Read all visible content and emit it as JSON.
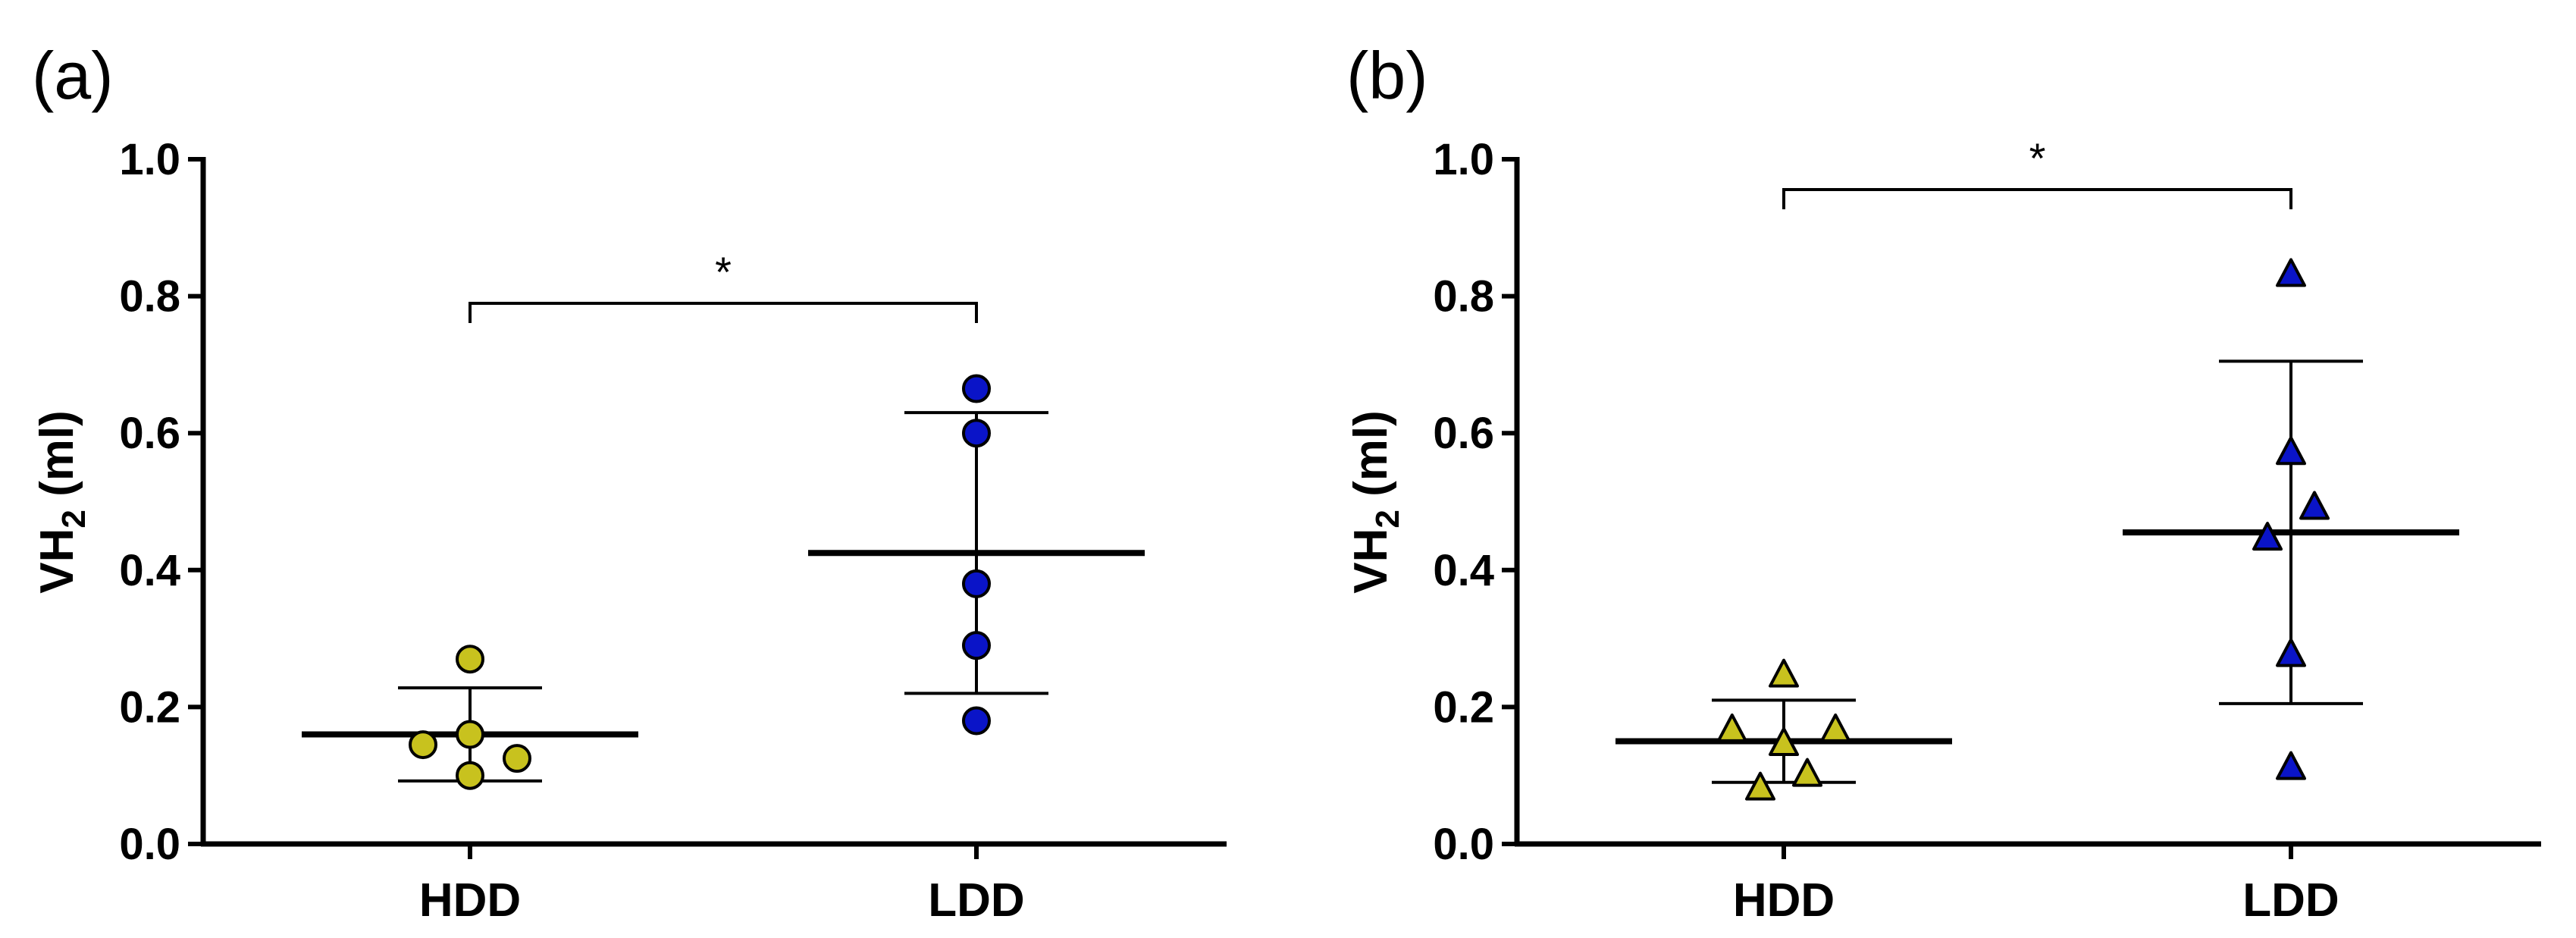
{
  "chart_data": [
    {
      "type": "scatter",
      "panel": "(a)",
      "ylabel_main": "VH",
      "ylabel_sub": "2",
      "ylabel_unit": " (ml)",
      "ylim": [
        0,
        1.0
      ],
      "yticks": [
        "0.0",
        "0.2",
        "0.4",
        "0.6",
        "0.8",
        "1.0"
      ],
      "categories": [
        "HDD",
        "LDD"
      ],
      "marker": "circle",
      "significance": "*",
      "series": [
        {
          "name": "HDD",
          "color": "#c8c21e",
          "points": [
            0.27,
            0.145,
            0.16,
            0.125,
            0.1
          ],
          "jitter": [
            0,
            -1,
            0,
            1,
            0
          ],
          "mean": 0.16,
          "sd_upper": 0.228,
          "sd_lower": 0.092
        },
        {
          "name": "LDD",
          "color": "#0a14c8",
          "points": [
            0.665,
            0.6,
            0.38,
            0.29,
            0.18
          ],
          "jitter": [
            0,
            0,
            0,
            0,
            0
          ],
          "mean": 0.425,
          "sd_upper": 0.63,
          "sd_lower": 0.22
        }
      ]
    },
    {
      "type": "scatter",
      "panel": "(b)",
      "ylabel_main": "VH",
      "ylabel_sub": "2",
      "ylabel_unit": " (ml)",
      "ylim": [
        0,
        1.0
      ],
      "yticks": [
        "0.0",
        "0.2",
        "0.4",
        "0.6",
        "0.8",
        "1.0"
      ],
      "categories": [
        "HDD",
        "LDD"
      ],
      "marker": "triangle",
      "significance": "*",
      "series": [
        {
          "name": "HDD",
          "color": "#c8c21e",
          "points": [
            0.245,
            0.165,
            0.145,
            0.165,
            0.1,
            0.08
          ],
          "jitter": [
            0,
            -1.1,
            0,
            1.1,
            0.5,
            -0.5
          ],
          "mean": 0.15,
          "sd_upper": 0.21,
          "sd_lower": 0.09
        },
        {
          "name": "LDD",
          "color": "#0a14c8",
          "points": [
            0.83,
            0.57,
            0.49,
            0.445,
            0.275,
            0.11
          ],
          "jitter": [
            0,
            0,
            0.5,
            -0.5,
            0,
            0
          ],
          "mean": 0.455,
          "sd_upper": 0.705,
          "sd_lower": 0.205
        }
      ]
    }
  ]
}
